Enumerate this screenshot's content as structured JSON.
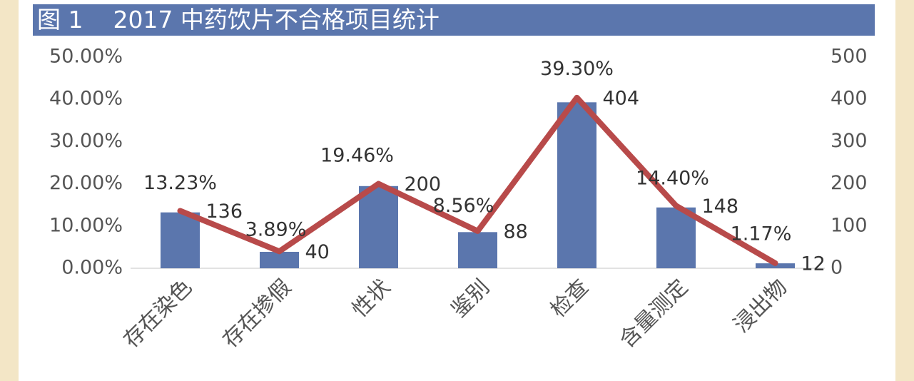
{
  "title": "图 1    2017 中药饮片不合格项目统计",
  "colors": {
    "bar": "#5b76ad",
    "line": "#b84a4a",
    "title_bg": "#5b76ad",
    "frame": "#f3e6c6"
  },
  "chart_data": {
    "type": "bar",
    "title": "图 1    2017 中药饮片不合格项目统计",
    "categories": [
      "存在染色",
      "存在掺假",
      "性状",
      "鉴别",
      "检查",
      "含量测定",
      "浸出物"
    ],
    "series": [
      {
        "type": "bar",
        "axis": "left",
        "values": [
          13.23,
          3.89,
          19.46,
          8.56,
          39.3,
          14.4,
          1.17
        ],
        "labels": [
          "13.23%",
          "3.89%",
          "19.46%",
          "8.56%",
          "39.30%",
          "14.40%",
          "1.17%"
        ]
      },
      {
        "type": "line",
        "axis": "right",
        "values": [
          136,
          40,
          200,
          88,
          404,
          148,
          12
        ],
        "labels": [
          "136",
          "40",
          "200",
          "88",
          "404",
          "148",
          "12"
        ]
      }
    ],
    "y_left": {
      "ylim": [
        0,
        50
      ],
      "ticks": [
        "0.00%",
        "10.00%",
        "20.00%",
        "30.00%",
        "40.00%",
        "50.00%"
      ]
    },
    "y_right": {
      "ylim": [
        0,
        500
      ],
      "ticks": [
        "0",
        "100",
        "200",
        "300",
        "400",
        "500"
      ]
    },
    "grid": false,
    "legend": "none"
  }
}
